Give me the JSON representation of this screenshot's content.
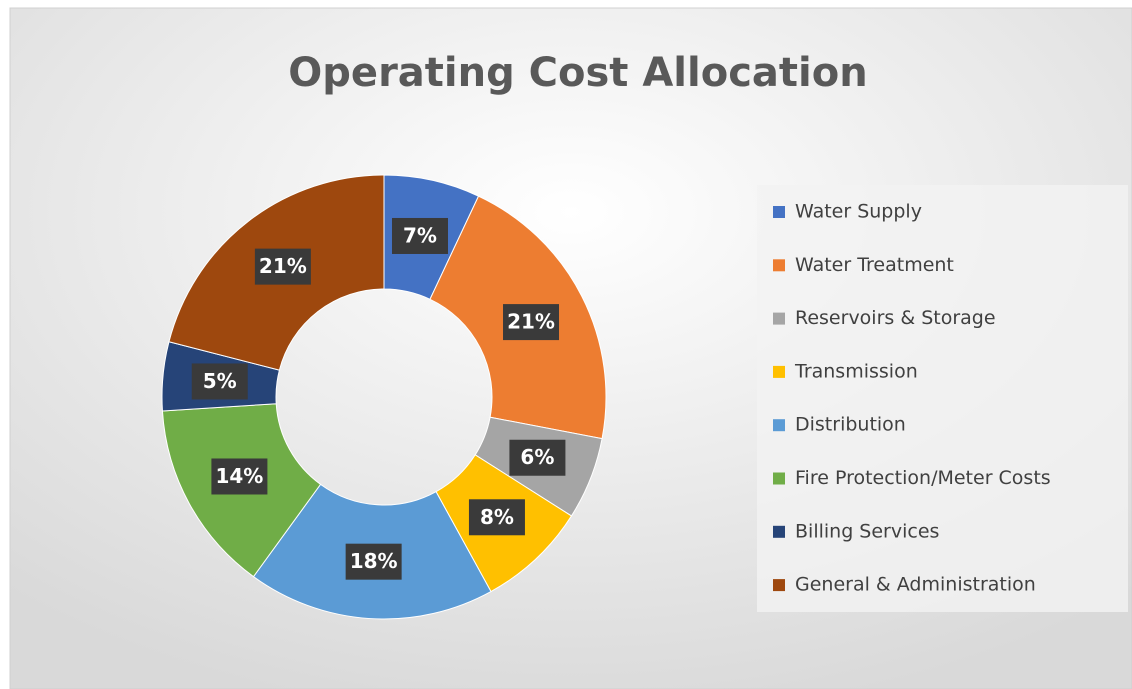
{
  "chart_data": {
    "type": "donut",
    "title": "Operating Cost Allocation",
    "categories": [
      "Water Supply",
      "Water Treatment",
      "Reservoirs & Storage",
      "Transmission",
      "Distribution",
      "Fire Protection/Meter Costs",
      "Billing Services",
      "General & Administration"
    ],
    "values": [
      7,
      21,
      6,
      8,
      18,
      14,
      5,
      21
    ],
    "value_labels": [
      "7%",
      "21%",
      "6%",
      "8%",
      "18%",
      "14%",
      "5%",
      "21%"
    ],
    "colors": [
      "#4472c4",
      "#ed7d31",
      "#a5a5a5",
      "#ffc000",
      "#5b9bd5",
      "#70ad47",
      "#264478",
      "#9e480e"
    ],
    "legend": "right"
  }
}
